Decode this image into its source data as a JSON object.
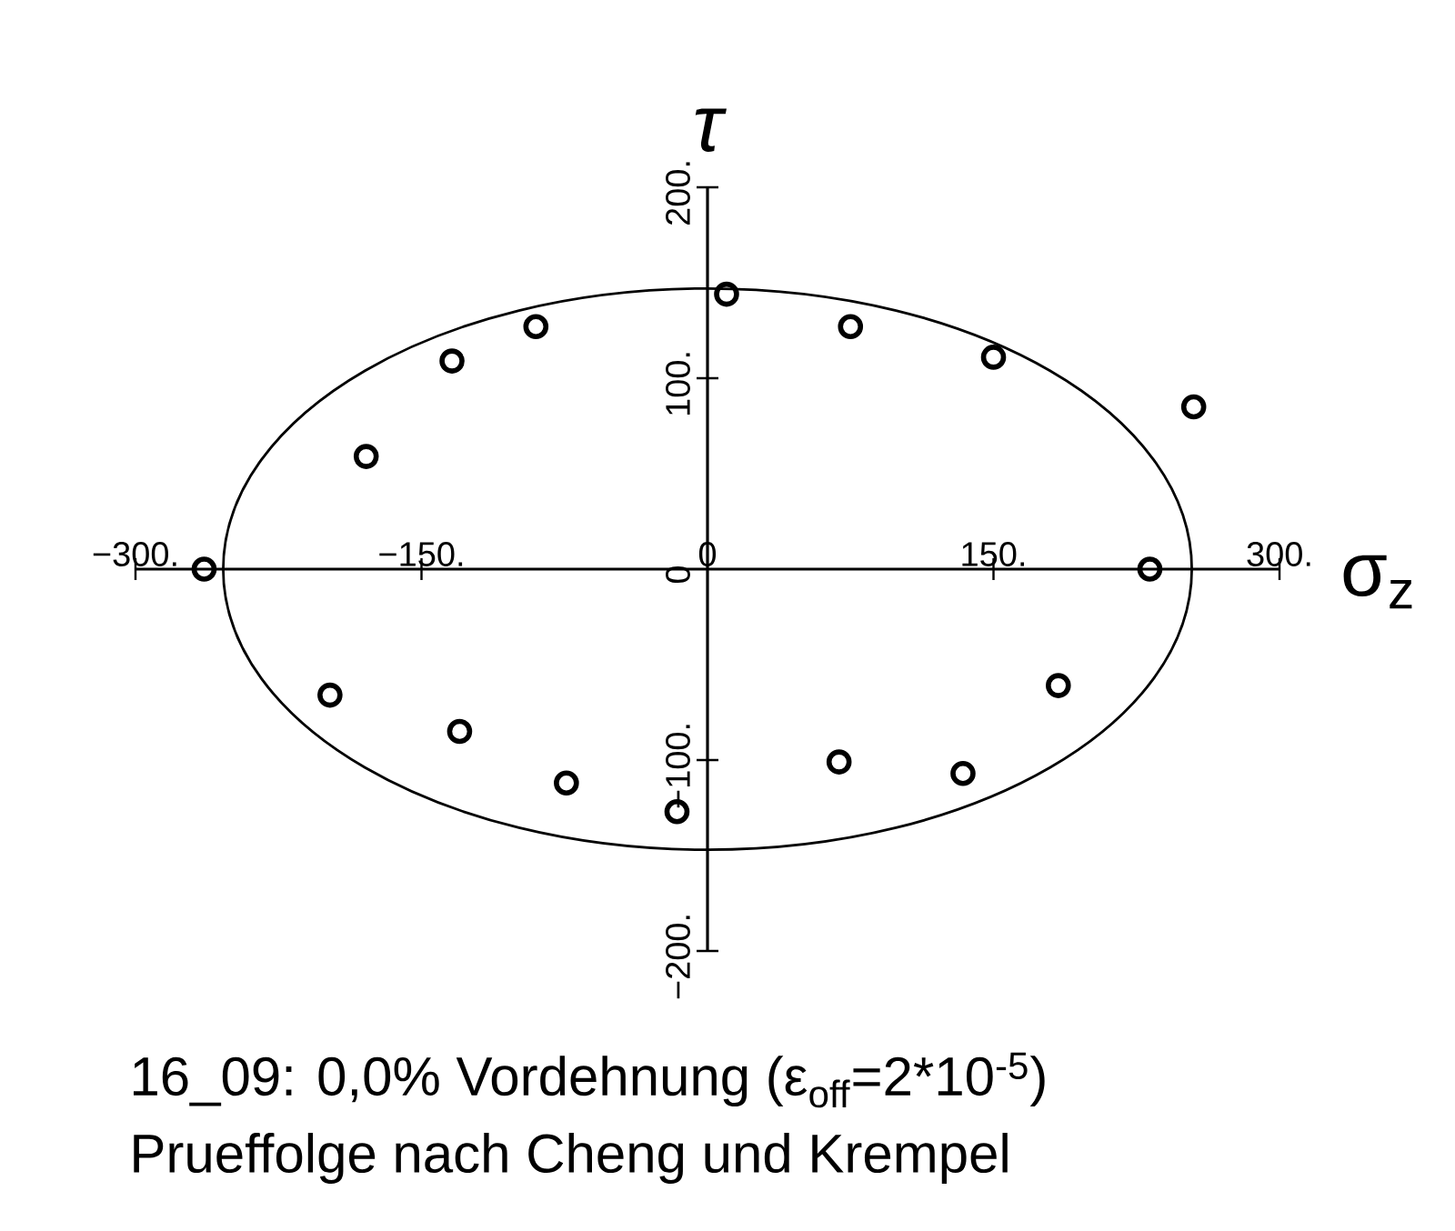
{
  "chart_data": {
    "type": "scatter",
    "xlabel": "σ$_{z}$",
    "ylabel": "τ",
    "annotations": [
      "16_09: 0,0% Vordehnung (ε$_{off}$=2*10$^{-5}$)",
      "Prueffolge nach Cheng und Krempel"
    ],
    "xlim": [
      -300,
      300
    ],
    "ylim": [
      -200,
      200
    ],
    "xticks": [
      {
        "value": -300,
        "label": "−300."
      },
      {
        "value": -150,
        "label": "−150."
      },
      {
        "value": 0,
        "label": "0"
      },
      {
        "value": 150,
        "label": "150."
      },
      {
        "value": 300,
        "label": "300."
      }
    ],
    "yticks": [
      {
        "value": -200,
        "label": "−200."
      },
      {
        "value": -100,
        "label": "−100."
      },
      {
        "value": 0,
        "label": "0"
      },
      {
        "value": 100,
        "label": "100."
      },
      {
        "value": 200,
        "label": "200."
      }
    ],
    "series": [
      {
        "type": "scatter",
        "color": "#000000",
        "marker": "circle",
        "x": [
          -264,
          -179,
          -134,
          -90,
          10,
          75,
          150,
          255,
          232,
          -198,
          -130,
          -74,
          -16,
          69,
          134,
          184
        ],
        "values": [
          0,
          59,
          109,
          127,
          144,
          127,
          111,
          85,
          0,
          -66,
          -85,
          -112,
          -127,
          -101,
          -107,
          -61
        ]
      }
    ]
  }
}
